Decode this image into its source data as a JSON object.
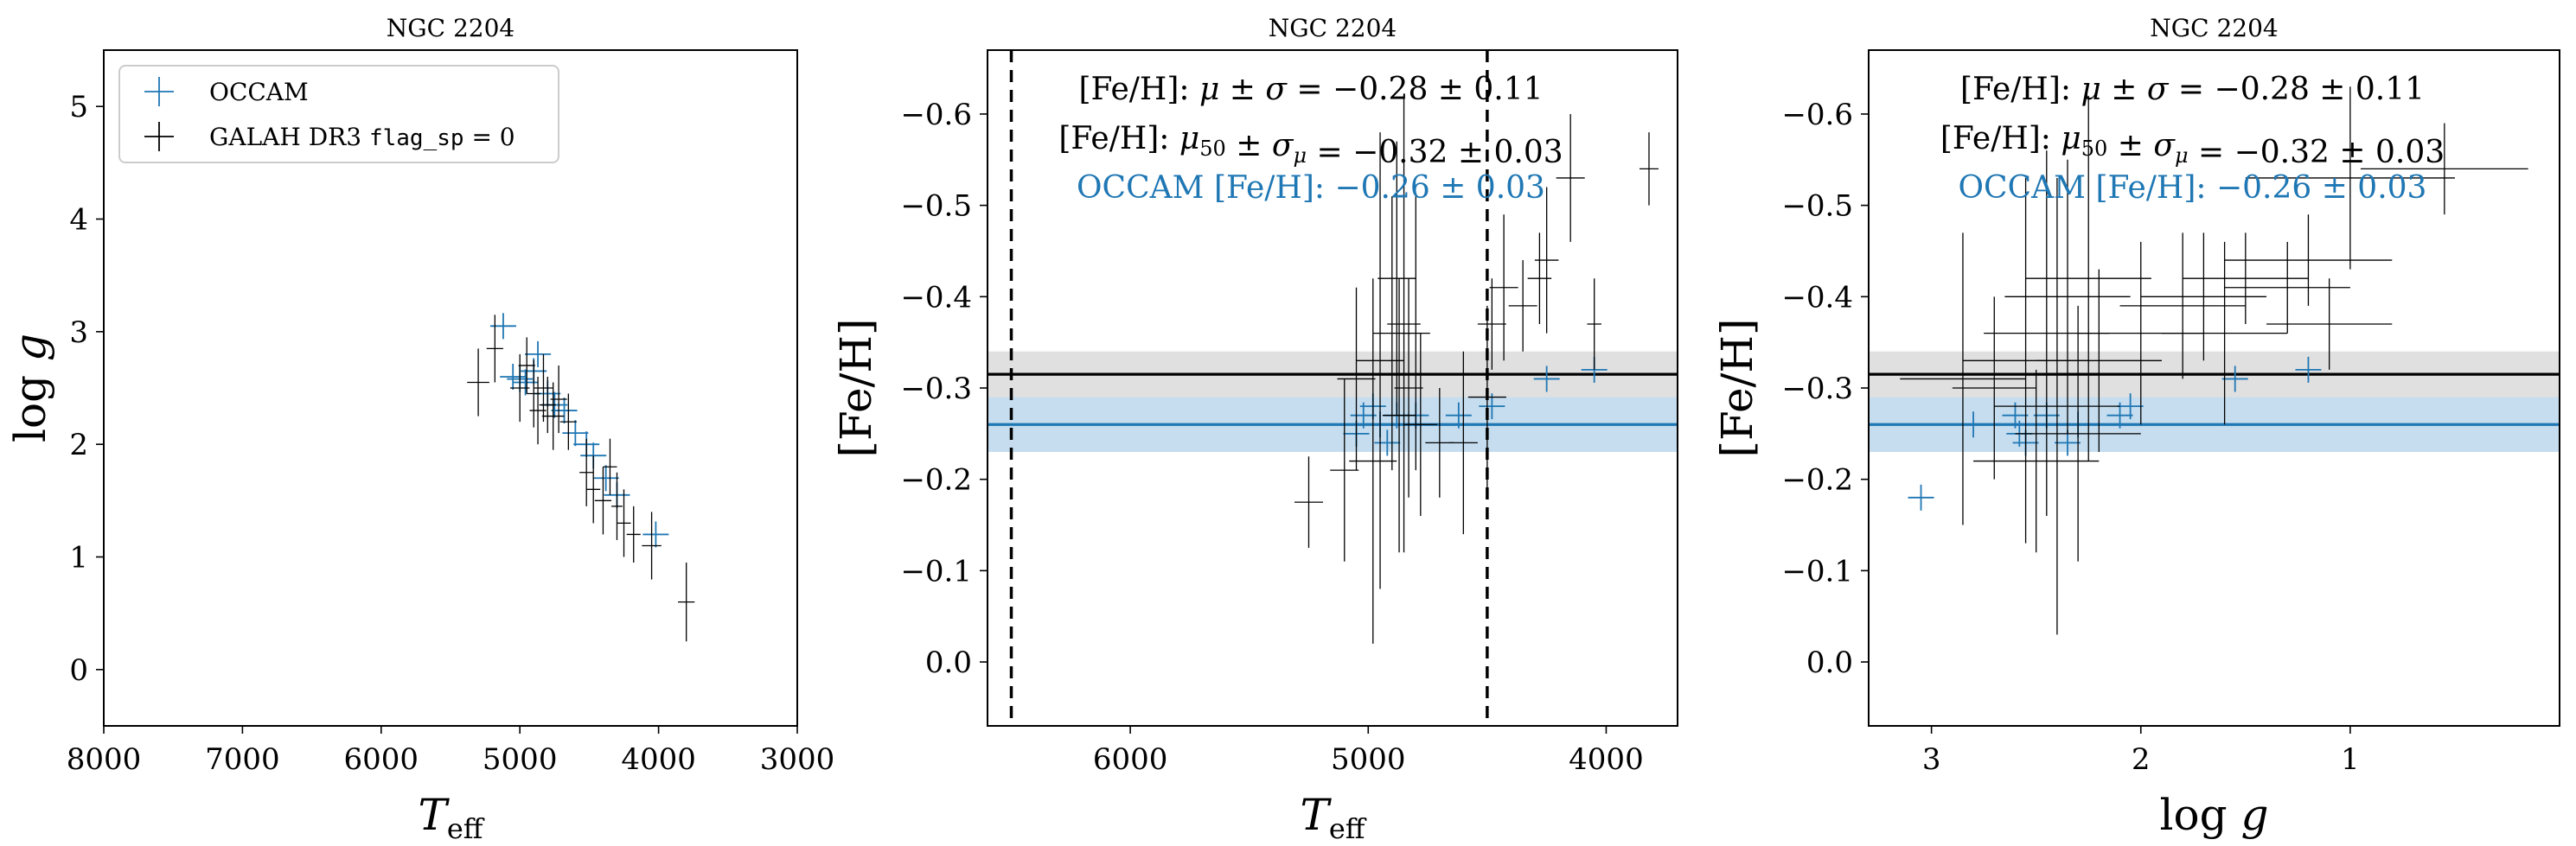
{
  "colors": {
    "occam": "#1f77b4",
    "galah": "#000000",
    "occam_band": "#a6cbe6",
    "galah_band": "#d6d6d6"
  },
  "chart_data": [
    {
      "type": "scatter",
      "title": "NGC 2204",
      "xlabel": "T_eff",
      "ylabel": "log g",
      "xlim": [
        8000,
        3000
      ],
      "ylim": [
        5.5,
        -0.5
      ],
      "x_ticks": [
        "8000",
        "7000",
        "6000",
        "5000",
        "4000",
        "3000"
      ],
      "y_ticks": [
        "0",
        "1",
        "2",
        "3",
        "4",
        "5"
      ],
      "legend": {
        "placement": "top-left",
        "entries": [
          "OCCAM",
          "GALAH DR3 flag_sp = 0"
        ]
      },
      "series": [
        {
          "name": "OCCAM",
          "points": [
            [
              5120,
              3.05
            ],
            [
              5050,
              2.6
            ],
            [
              5000,
              2.58
            ],
            [
              4960,
              2.55
            ],
            [
              4900,
              2.65
            ],
            [
              4870,
              2.8
            ],
            [
              4800,
              2.45
            ],
            [
              4750,
              2.35
            ],
            [
              4680,
              2.3
            ],
            [
              4600,
              2.1
            ],
            [
              4520,
              2.0
            ],
            [
              4470,
              1.9
            ],
            [
              4380,
              1.7
            ],
            [
              4300,
              1.55
            ],
            [
              4020,
              1.2
            ]
          ]
        },
        {
          "name": "GALAH DR3 flag_sp = 0",
          "points": [
            [
              5300,
              2.55,
              80,
              0.3
            ],
            [
              5180,
              2.85,
              60,
              0.3
            ],
            [
              5000,
              2.5,
              70,
              0.3
            ],
            [
              4950,
              2.7,
              60,
              0.25
            ],
            [
              4900,
              2.45,
              50,
              0.3
            ],
            [
              4870,
              2.3,
              60,
              0.3
            ],
            [
              4830,
              2.5,
              70,
              0.3
            ],
            [
              4800,
              2.35,
              60,
              0.25
            ],
            [
              4760,
              2.25,
              80,
              0.3
            ],
            [
              4720,
              2.4,
              60,
              0.3
            ],
            [
              4650,
              2.2,
              60,
              0.25
            ],
            [
              4520,
              1.75,
              50,
              0.3
            ],
            [
              4470,
              1.6,
              50,
              0.3
            ],
            [
              4400,
              1.5,
              60,
              0.3
            ],
            [
              4350,
              1.8,
              50,
              0.25
            ],
            [
              4300,
              1.45,
              40,
              0.3
            ],
            [
              4250,
              1.3,
              50,
              0.3
            ],
            [
              4180,
              1.2,
              50,
              0.25
            ],
            [
              4050,
              1.1,
              70,
              0.3
            ],
            [
              3800,
              0.6,
              60,
              0.35
            ]
          ]
        }
      ]
    },
    {
      "type": "scatter",
      "title": "NGC 2204",
      "xlabel": "T_eff",
      "ylabel": "[Fe/H]",
      "xlim": [
        6600,
        3700
      ],
      "ylim": [
        -0.67,
        0.07
      ],
      "x_ticks": [
        "6000",
        "5000",
        "4000"
      ],
      "y_ticks": [
        "0.0",
        "−0.1",
        "−0.2",
        "−0.3",
        "−0.4",
        "−0.5",
        "−0.6"
      ],
      "vlines": [
        6500,
        4500
      ],
      "annotations": [
        "[Fe/H]: μ ± σ = −0.28 ± 0.11",
        "[Fe/H]: μ50 ± σμ = −0.32 ± 0.03",
        "OCCAM [Fe/H]: −0.26 ± 0.03"
      ],
      "hlines": [
        {
          "name": "OCCAM",
          "y": -0.26,
          "band": [
            -0.29,
            -0.23
          ]
        },
        {
          "name": "GALAH",
          "y": -0.315,
          "band": [
            -0.34,
            -0.29
          ]
        }
      ],
      "series": [
        {
          "name": "OCCAM",
          "points": [
            [
              5050,
              -0.25
            ],
            [
              5020,
              -0.27
            ],
            [
              4980,
              -0.28
            ],
            [
              4950,
              -0.26
            ],
            [
              4920,
              -0.24
            ],
            [
              4880,
              -0.27
            ],
            [
              4800,
              -0.27
            ],
            [
              4620,
              -0.27
            ],
            [
              4480,
              -0.28
            ],
            [
              4250,
              -0.31
            ],
            [
              4050,
              -0.32
            ]
          ]
        },
        {
          "name": "GALAH",
          "points": [
            [
              5250,
              -0.175,
              60,
              0.05
            ],
            [
              5100,
              -0.21,
              60,
              0.1
            ],
            [
              5050,
              -0.31,
              80,
              0.1
            ],
            [
              4980,
              -0.22,
              100,
              0.2
            ],
            [
              4950,
              -0.33,
              100,
              0.25
            ],
            [
              4900,
              -0.36,
              80,
              0.15
            ],
            [
              4880,
              -0.42,
              80,
              0.15
            ],
            [
              4870,
              -0.27,
              70,
              0.15
            ],
            [
              4850,
              -0.37,
              70,
              0.25
            ],
            [
              4830,
              -0.3,
              60,
              0.12
            ],
            [
              4800,
              -0.36,
              60,
              0.15
            ],
            [
              4780,
              -0.26,
              70,
              0.1
            ],
            [
              4700,
              -0.24,
              60,
              0.06
            ],
            [
              4600,
              -0.24,
              60,
              0.1
            ],
            [
              4500,
              -0.29,
              80,
              0.1
            ],
            [
              4480,
              -0.37,
              60,
              0.05
            ],
            [
              4430,
              -0.41,
              60,
              0.08
            ],
            [
              4350,
              -0.39,
              60,
              0.05
            ],
            [
              4280,
              -0.42,
              50,
              0.05
            ],
            [
              4250,
              -0.44,
              50,
              0.08
            ],
            [
              4150,
              -0.53,
              60,
              0.07
            ],
            [
              4050,
              -0.37,
              30,
              0.05
            ],
            [
              3820,
              -0.54,
              40,
              0.04
            ]
          ]
        }
      ]
    },
    {
      "type": "scatter",
      "title": "NGC 2204",
      "xlabel": "log g",
      "ylabel": "[Fe/H]",
      "xlim": [
        3.3,
        0.0
      ],
      "ylim": [
        -0.67,
        0.07
      ],
      "x_ticks": [
        "3",
        "2",
        "1"
      ],
      "y_ticks": [
        "0.0",
        "−0.1",
        "−0.2",
        "−0.3",
        "−0.4",
        "−0.5",
        "−0.6"
      ],
      "annotations": [
        "[Fe/H]: μ ± σ = −0.28 ± 0.11",
        "[Fe/H]: μ50 ± σμ = −0.32 ± 0.03",
        "OCCAM [Fe/H]: −0.26 ± 0.03"
      ],
      "hlines": [
        {
          "name": "OCCAM",
          "y": -0.26,
          "band": [
            -0.29,
            -0.23
          ]
        },
        {
          "name": "GALAH",
          "y": -0.315,
          "band": [
            -0.34,
            -0.29
          ]
        }
      ],
      "series": [
        {
          "name": "OCCAM",
          "points": [
            [
              3.05,
              -0.18
            ],
            [
              2.8,
              -0.26
            ],
            [
              2.6,
              -0.27
            ],
            [
              2.58,
              -0.25
            ],
            [
              2.55,
              -0.24
            ],
            [
              2.45,
              -0.27
            ],
            [
              2.35,
              -0.24
            ],
            [
              2.3,
              -0.26
            ],
            [
              2.1,
              -0.27
            ],
            [
              2.05,
              -0.28
            ],
            [
              1.55,
              -0.31
            ],
            [
              1.2,
              -0.32
            ]
          ]
        },
        {
          "name": "GALAH",
          "points": [
            [
              2.85,
              -0.31,
              0.3,
              0.16
            ],
            [
              2.7,
              -0.3,
              0.2,
              0.1
            ],
            [
              2.55,
              -0.33,
              0.3,
              0.2
            ],
            [
              2.5,
              -0.22,
              0.3,
              0.1
            ],
            [
              2.45,
              -0.36,
              0.3,
              0.2
            ],
            [
              2.4,
              -0.28,
              0.3,
              0.25
            ],
            [
              2.35,
              -0.4,
              0.3,
              0.15
            ],
            [
              2.3,
              -0.25,
              0.3,
              0.14
            ],
            [
              2.25,
              -0.42,
              0.3,
              0.2
            ],
            [
              2.2,
              -0.33,
              0.3,
              0.1
            ],
            [
              2.0,
              -0.36,
              0.3,
              0.1
            ],
            [
              1.8,
              -0.39,
              0.3,
              0.08
            ],
            [
              1.7,
              -0.4,
              0.3,
              0.07
            ],
            [
              1.6,
              -0.36,
              0.3,
              0.1
            ],
            [
              1.5,
              -0.42,
              0.3,
              0.05
            ],
            [
              1.3,
              -0.41,
              0.3,
              0.05
            ],
            [
              1.2,
              -0.44,
              0.4,
              0.05
            ],
            [
              0.55,
              -0.54,
              0.4,
              0.05
            ],
            [
              1.0,
              -0.53,
              0.5,
              0.1
            ],
            [
              1.1,
              -0.37,
              0.3,
              0.05
            ]
          ]
        }
      ]
    }
  ]
}
